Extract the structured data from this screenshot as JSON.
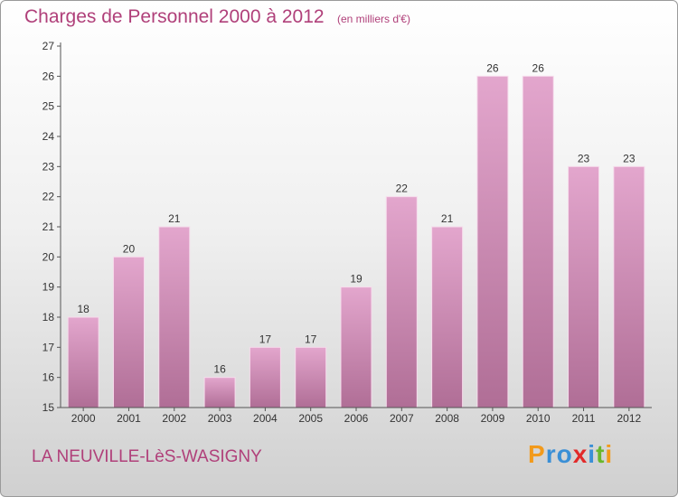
{
  "header": {
    "title": "Charges de Personnel 2000 à 2012",
    "unit_note": "(en milliers d'€)"
  },
  "footer": {
    "commune": "LA NEUVILLE-LèS-WASIGNY",
    "logo": {
      "text": "Proxiti",
      "letters": [
        {
          "char": "P",
          "color": "#f29a1b"
        },
        {
          "char": "r",
          "color": "#3a8fd6"
        },
        {
          "char": "o",
          "color": "#3a8fd6"
        },
        {
          "char": "x",
          "color": "#e22a2a"
        },
        {
          "char": "i",
          "color": "#3a8fd6"
        },
        {
          "char": "t",
          "color": "#6ab72c"
        },
        {
          "char": "i",
          "color": "#f29a1b"
        }
      ]
    }
  },
  "chart_data": {
    "type": "bar",
    "title": "Charges de Personnel 2000 à 2012",
    "subtitle": "(en milliers d'€)",
    "categories": [
      "2000",
      "2001",
      "2002",
      "2003",
      "2004",
      "2005",
      "2006",
      "2007",
      "2008",
      "2009",
      "2010",
      "2011",
      "2012"
    ],
    "values": [
      18,
      20,
      21,
      16,
      17,
      17,
      19,
      22,
      21,
      26,
      26,
      23,
      23
    ],
    "data_labels": [
      "18",
      "20",
      "21",
      "16",
      "17",
      "17",
      "19",
      "22",
      "21",
      "26",
      "26",
      "23",
      "23"
    ],
    "ylim": [
      15,
      27
    ],
    "yticks": [
      15,
      16,
      17,
      18,
      19,
      20,
      21,
      22,
      23,
      24,
      25,
      26,
      27
    ],
    "xlabel": "",
    "ylabel": "",
    "grid": false,
    "colors": {
      "bar_light": "#e3a6cd",
      "bar_dark": "#b06e96",
      "bar_edge": "#f6dcec",
      "axis": "#555555",
      "label": "#333333",
      "accent": "#b0407a"
    }
  }
}
